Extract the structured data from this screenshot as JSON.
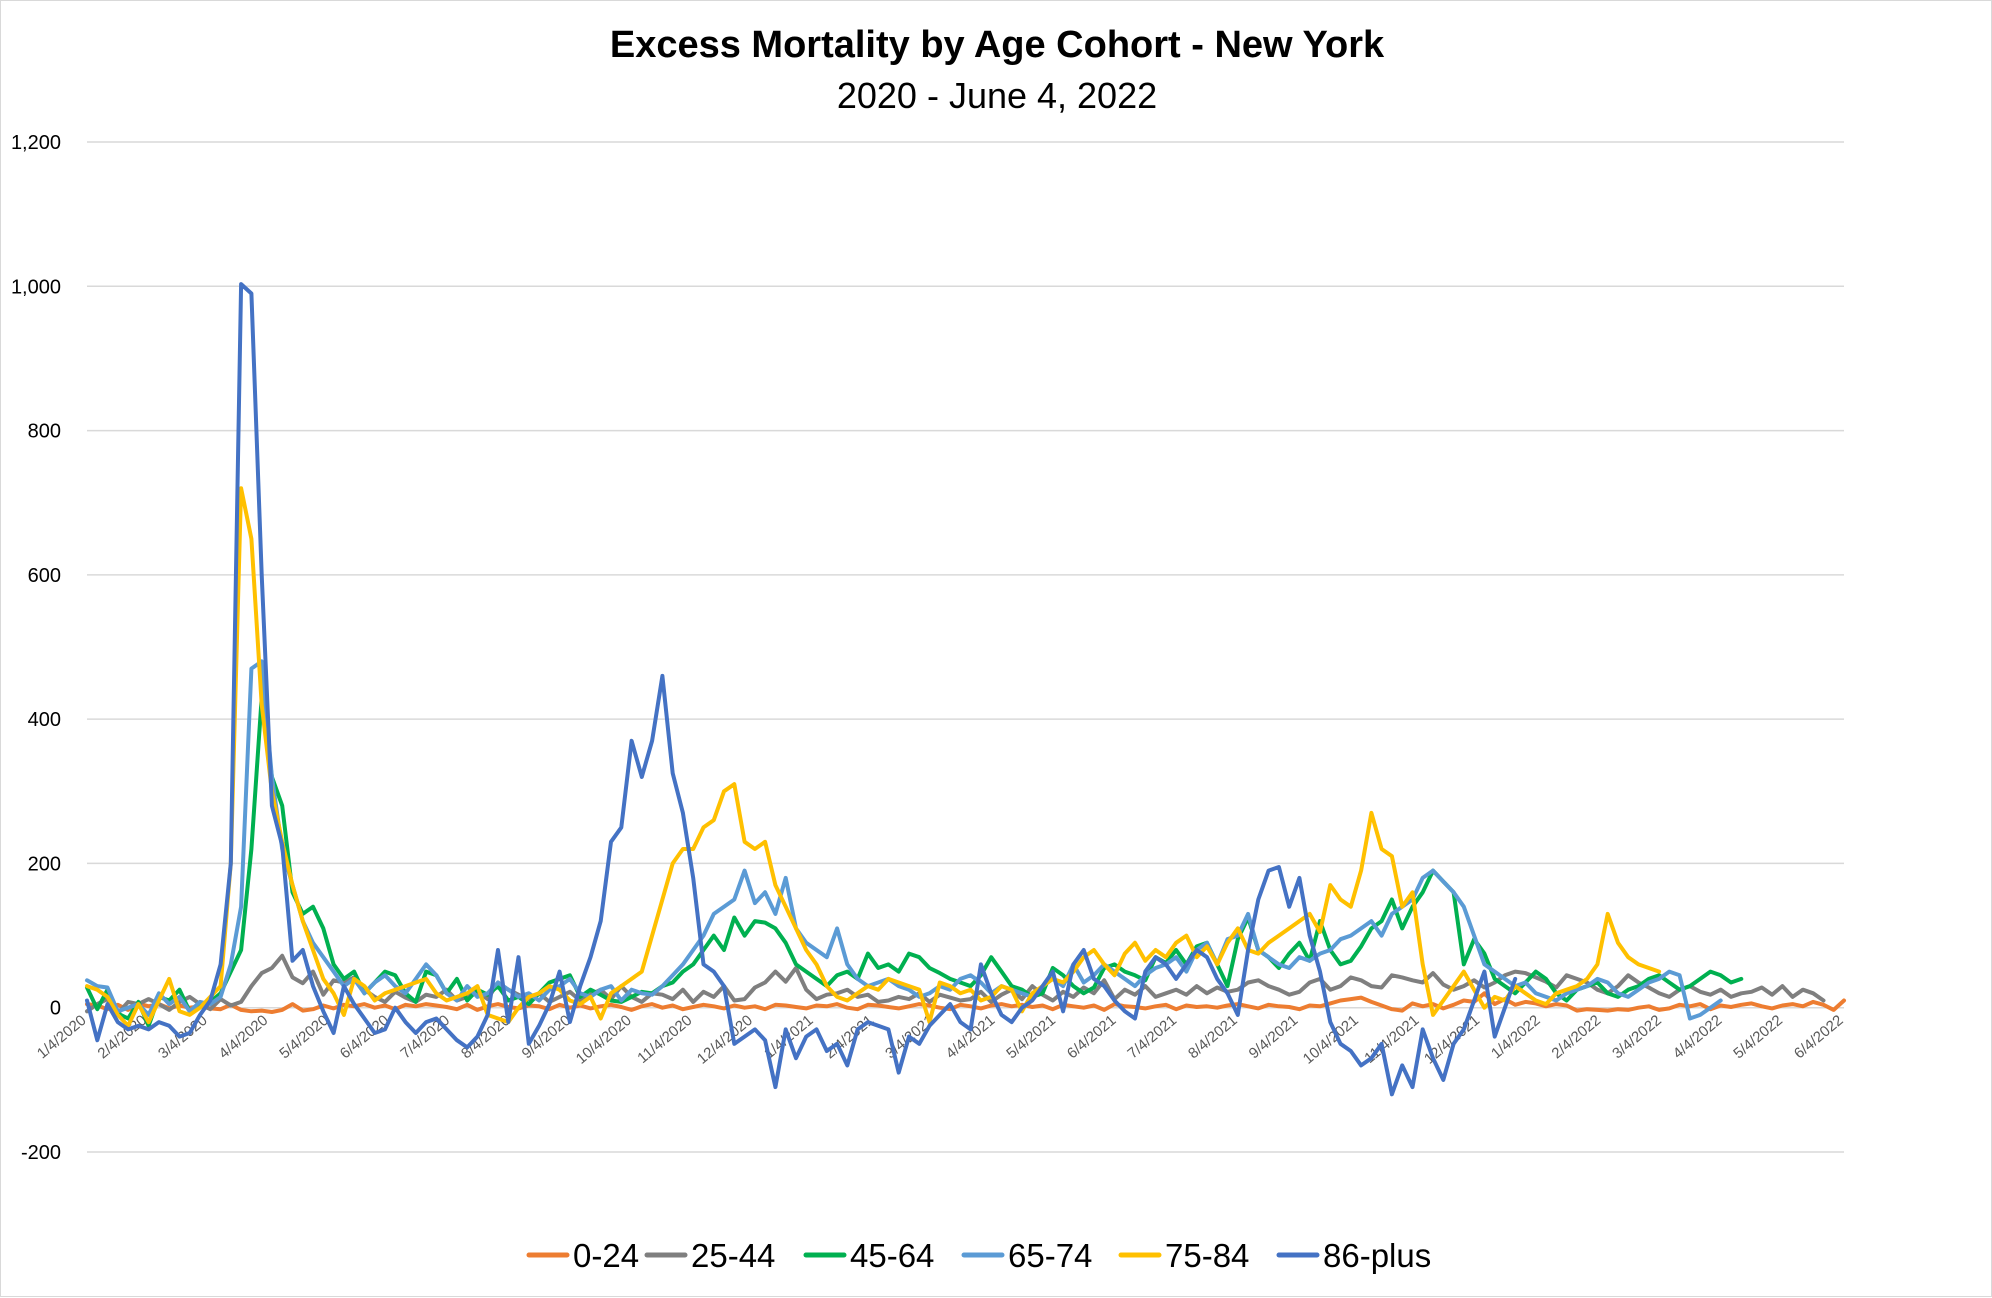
{
  "chart_data": {
    "type": "line",
    "title": "Excess Mortality by Age Cohort - New York",
    "subtitle": "2020 - June 4, 2022",
    "xlabel": "",
    "ylabel": "",
    "ylim": [
      -200,
      1200
    ],
    "y_ticks": [
      -200,
      0,
      200,
      400,
      600,
      800,
      1000,
      1200
    ],
    "y_tick_labels": [
      "-200",
      "0",
      "200",
      "400",
      "600",
      "800",
      "1,000",
      "1,200"
    ],
    "x_tick_labels": [
      "1/4/2020",
      "2/4/2020",
      "3/4/2020",
      "4/4/2020",
      "5/4/2020",
      "6/4/2020",
      "7/4/2020",
      "8/4/2020",
      "9/4/2020",
      "10/4/2020",
      "11/4/2020",
      "12/4/2020",
      "1/4/2021",
      "2/4/2021",
      "3/4/2021",
      "4/4/2021",
      "5/4/2021",
      "6/4/2021",
      "7/4/2021",
      "8/4/2021",
      "9/4/2021",
      "10/4/2021",
      "11/4/2021",
      "12/4/2021",
      "1/4/2022",
      "2/4/2022",
      "3/4/2022",
      "4/4/2022",
      "5/4/2022",
      "6/4/2022"
    ],
    "grid": true,
    "legend_position": "bottom",
    "series": [
      {
        "name": "0-24",
        "color": "#ED7D31",
        "values": [
          5,
          3,
          -2,
          4,
          -3,
          6,
          2,
          5,
          -1,
          3,
          0,
          2,
          -1,
          -2,
          4,
          -3,
          -5,
          -4,
          -6,
          -3,
          5,
          -4,
          -2,
          3,
          -1,
          4,
          2,
          5,
          0,
          3,
          -2,
          4,
          2,
          5,
          3,
          1,
          -2,
          4,
          -3,
          2,
          5,
          1,
          -1,
          3,
          2,
          -2,
          4,
          0,
          3,
          -1,
          2,
          4,
          1,
          -3,
          2,
          5,
          0,
          3,
          -2,
          1,
          4,
          2,
          -1,
          3,
          0,
          2,
          -2,
          4,
          3,
          1,
          -1,
          3,
          2,
          5,
          0,
          -2,
          4,
          3,
          1,
          -1,
          2,
          5,
          3,
          0,
          -2,
          4,
          2,
          -1,
          3,
          5,
          2,
          4,
          1,
          3,
          -2,
          4,
          2,
          0,
          3,
          -3,
          5,
          2,
          1,
          -1,
          2,
          4,
          -2,
          3,
          1,
          2,
          0,
          3,
          5,
          2,
          -1,
          4,
          2,
          1,
          -2,
          3,
          2,
          6,
          10,
          12,
          14,
          8,
          3,
          -2,
          -4,
          6,
          2,
          5,
          -1,
          4,
          10,
          8,
          20,
          5,
          12,
          4,
          8,
          6,
          2,
          5,
          3,
          -4,
          -2,
          -3,
          -4,
          -2,
          -3,
          0,
          2,
          -3,
          -1,
          4,
          2,
          5,
          -2,
          3,
          1,
          4,
          6,
          2,
          -1,
          3,
          5,
          2,
          8,
          4,
          -3,
          10
        ]
      },
      {
        "name": "25-44",
        "color": "#7F7F7F",
        "values": [
          -5,
          5,
          12,
          -8,
          8,
          5,
          12,
          5,
          -3,
          8,
          15,
          5,
          -2,
          12,
          3,
          8,
          30,
          48,
          55,
          72,
          42,
          34,
          50,
          18,
          38,
          35,
          42,
          25,
          15,
          8,
          22,
          14,
          8,
          18,
          15,
          25,
          10,
          15,
          22,
          12,
          35,
          25,
          18,
          12,
          20,
          8,
          15,
          22,
          10,
          18,
          25,
          12,
          30,
          15,
          8,
          20,
          18,
          12,
          25,
          8,
          22,
          15,
          30,
          10,
          12,
          28,
          35,
          50,
          36,
          55,
          25,
          12,
          18,
          20,
          25,
          15,
          18,
          8,
          10,
          15,
          12,
          20,
          8,
          18,
          14,
          10,
          12,
          22,
          8,
          18,
          25,
          12,
          30,
          18,
          10,
          22,
          15,
          28,
          20,
          38,
          12,
          25,
          18,
          30,
          15,
          20,
          25,
          18,
          30,
          20,
          28,
          22,
          25,
          35,
          38,
          30,
          25,
          18,
          22,
          35,
          40,
          25,
          30,
          42,
          38,
          30,
          28,
          45,
          42,
          38,
          35,
          48,
          32,
          25,
          30,
          38,
          28,
          35,
          45,
          50,
          48,
          42,
          36,
          28,
          45,
          40,
          35,
          25,
          20,
          30,
          45,
          35,
          28,
          20,
          15,
          25,
          30,
          22,
          18,
          25,
          15,
          20,
          22,
          28,
          18,
          30,
          15,
          25,
          20,
          10
        ]
      },
      {
        "name": "45-64",
        "color": "#00B050",
        "values": [
          28,
          -2,
          25,
          -8,
          -15,
          8,
          -25,
          15,
          10,
          25,
          -5,
          5,
          8,
          20,
          50,
          80,
          220,
          430,
          320,
          280,
          160,
          130,
          140,
          110,
          60,
          40,
          50,
          20,
          35,
          50,
          45,
          20,
          8,
          50,
          45,
          20,
          40,
          10,
          25,
          18,
          30,
          10,
          15,
          5,
          20,
          35,
          40,
          45,
          15,
          25,
          18,
          10,
          8,
          15,
          22,
          20,
          30,
          35,
          50,
          60,
          80,
          100,
          80,
          125,
          100,
          120,
          118,
          110,
          90,
          60,
          50,
          40,
          30,
          45,
          50,
          40,
          75,
          55,
          60,
          50,
          75,
          70,
          55,
          48,
          40,
          35,
          30,
          45,
          70,
          50,
          30,
          25,
          15,
          20,
          55,
          45,
          30,
          20,
          28,
          55,
          60,
          50,
          45,
          38,
          70,
          62,
          80,
          60,
          85,
          90,
          60,
          30,
          95,
          125,
          80,
          70,
          55,
          75,
          90,
          65,
          120,
          80,
          60,
          65,
          85,
          110,
          120,
          150,
          110,
          140,
          160,
          190,
          175,
          160,
          60,
          95,
          75,
          40,
          30,
          20,
          35,
          50,
          40,
          20,
          10,
          25,
          30,
          35,
          20,
          15,
          25,
          30,
          40,
          45,
          35,
          25,
          30,
          40,
          50,
          45,
          35,
          40
        ]
      },
      {
        "name": "65-74",
        "color": "#5B9BD5",
        "values": [
          38,
          30,
          28,
          -5,
          0,
          5,
          -10,
          20,
          5,
          15,
          -5,
          8,
          5,
          15,
          60,
          140,
          470,
          480,
          320,
          220,
          170,
          120,
          90,
          70,
          50,
          30,
          40,
          20,
          35,
          45,
          30,
          20,
          40,
          60,
          45,
          20,
          10,
          30,
          15,
          20,
          35,
          25,
          15,
          20,
          10,
          25,
          30,
          40,
          20,
          15,
          25,
          30,
          10,
          25,
          20,
          18,
          30,
          45,
          60,
          80,
          100,
          130,
          140,
          150,
          190,
          145,
          160,
          130,
          180,
          110,
          90,
          80,
          70,
          110,
          60,
          40,
          30,
          35,
          40,
          30,
          25,
          15,
          20,
          30,
          25,
          40,
          45,
          35,
          20,
          30,
          25,
          20,
          15,
          30,
          40,
          30,
          60,
          35,
          45,
          60,
          50,
          40,
          30,
          45,
          55,
          60,
          70,
          50,
          80,
          90,
          60,
          95,
          100,
          130,
          80,
          70,
          60,
          55,
          70,
          65,
          75,
          80,
          95,
          100,
          110,
          120,
          100,
          130,
          140,
          150,
          180,
          190,
          175,
          160,
          140,
          100,
          60,
          50,
          40,
          30,
          35,
          20,
          15,
          10,
          20,
          25,
          30,
          40,
          35,
          20,
          15,
          25,
          35,
          40,
          50,
          45,
          -15,
          -10,
          0,
          10
        ]
      },
      {
        "name": "75-84",
        "color": "#FFC000",
        "values": [
          30,
          25,
          15,
          -10,
          -25,
          5,
          -20,
          10,
          40,
          -5,
          -10,
          0,
          15,
          30,
          200,
          720,
          650,
          420,
          300,
          230,
          170,
          120,
          80,
          40,
          20,
          -10,
          40,
          30,
          10,
          20,
          25,
          30,
          35,
          40,
          20,
          10,
          15,
          20,
          30,
          -10,
          -15,
          -20,
          0,
          15,
          20,
          30,
          25,
          10,
          5,
          15,
          -15,
          20,
          30,
          40,
          50,
          100,
          150,
          200,
          220,
          220,
          250,
          260,
          300,
          310,
          230,
          220,
          230,
          170,
          140,
          110,
          80,
          60,
          30,
          15,
          10,
          20,
          30,
          25,
          40,
          35,
          30,
          25,
          -20,
          35,
          30,
          20,
          25,
          10,
          15,
          30,
          25,
          -5,
          20,
          30,
          40,
          35,
          50,
          70,
          80,
          60,
          45,
          75,
          90,
          65,
          80,
          70,
          90,
          100,
          70,
          85,
          60,
          90,
          110,
          80,
          75,
          90,
          100,
          110,
          120,
          130,
          105,
          170,
          150,
          140,
          190,
          270,
          220,
          210,
          140,
          160,
          60,
          -10,
          10,
          30,
          50,
          25,
          0,
          15,
          10,
          30,
          20,
          10,
          5,
          20,
          25,
          30,
          40,
          60,
          130,
          90,
          70,
          60,
          55,
          50
        ]
      },
      {
        "name": "86-plus",
        "color": "#4472C4",
        "values": [
          10,
          -45,
          5,
          -20,
          -30,
          -25,
          -30,
          -20,
          -25,
          -40,
          -35,
          -10,
          10,
          60,
          200,
          1003,
          990,
          600,
          280,
          225,
          65,
          80,
          30,
          -5,
          -35,
          30,
          5,
          -15,
          -35,
          -30,
          0,
          -20,
          -35,
          -20,
          -15,
          -30,
          -45,
          -55,
          -40,
          -10,
          80,
          -20,
          70,
          -50,
          -25,
          5,
          50,
          -20,
          30,
          70,
          120,
          230,
          250,
          370,
          320,
          370,
          460,
          325,
          270,
          180,
          60,
          50,
          30,
          -50,
          -40,
          -30,
          -45,
          -110,
          -30,
          -70,
          -40,
          -30,
          -60,
          -50,
          -80,
          -30,
          -20,
          -25,
          -30,
          -90,
          -40,
          -50,
          -25,
          -10,
          5,
          -20,
          -30,
          60,
          20,
          -10,
          -20,
          0,
          10,
          30,
          50,
          -5,
          60,
          80,
          40,
          30,
          10,
          -5,
          -15,
          50,
          70,
          60,
          40,
          60,
          80,
          70,
          40,
          20,
          -10,
          80,
          150,
          190,
          195,
          140,
          180,
          100,
          50,
          -20,
          -50,
          -60,
          -80,
          -70,
          -50,
          -120,
          -80,
          -110,
          -30,
          -70,
          -100,
          -50,
          -30,
          10,
          50,
          -40,
          0,
          40
        ]
      }
    ]
  },
  "legend": {
    "items": [
      {
        "label": "0-24",
        "color": "#ED7D31"
      },
      {
        "label": "25-44",
        "color": "#7F7F7F"
      },
      {
        "label": "45-64",
        "color": "#00B050"
      },
      {
        "label": "65-74",
        "color": "#5B9BD5"
      },
      {
        "label": "75-84",
        "color": "#FFC000"
      },
      {
        "label": "86-plus",
        "color": "#4472C4"
      }
    ]
  }
}
